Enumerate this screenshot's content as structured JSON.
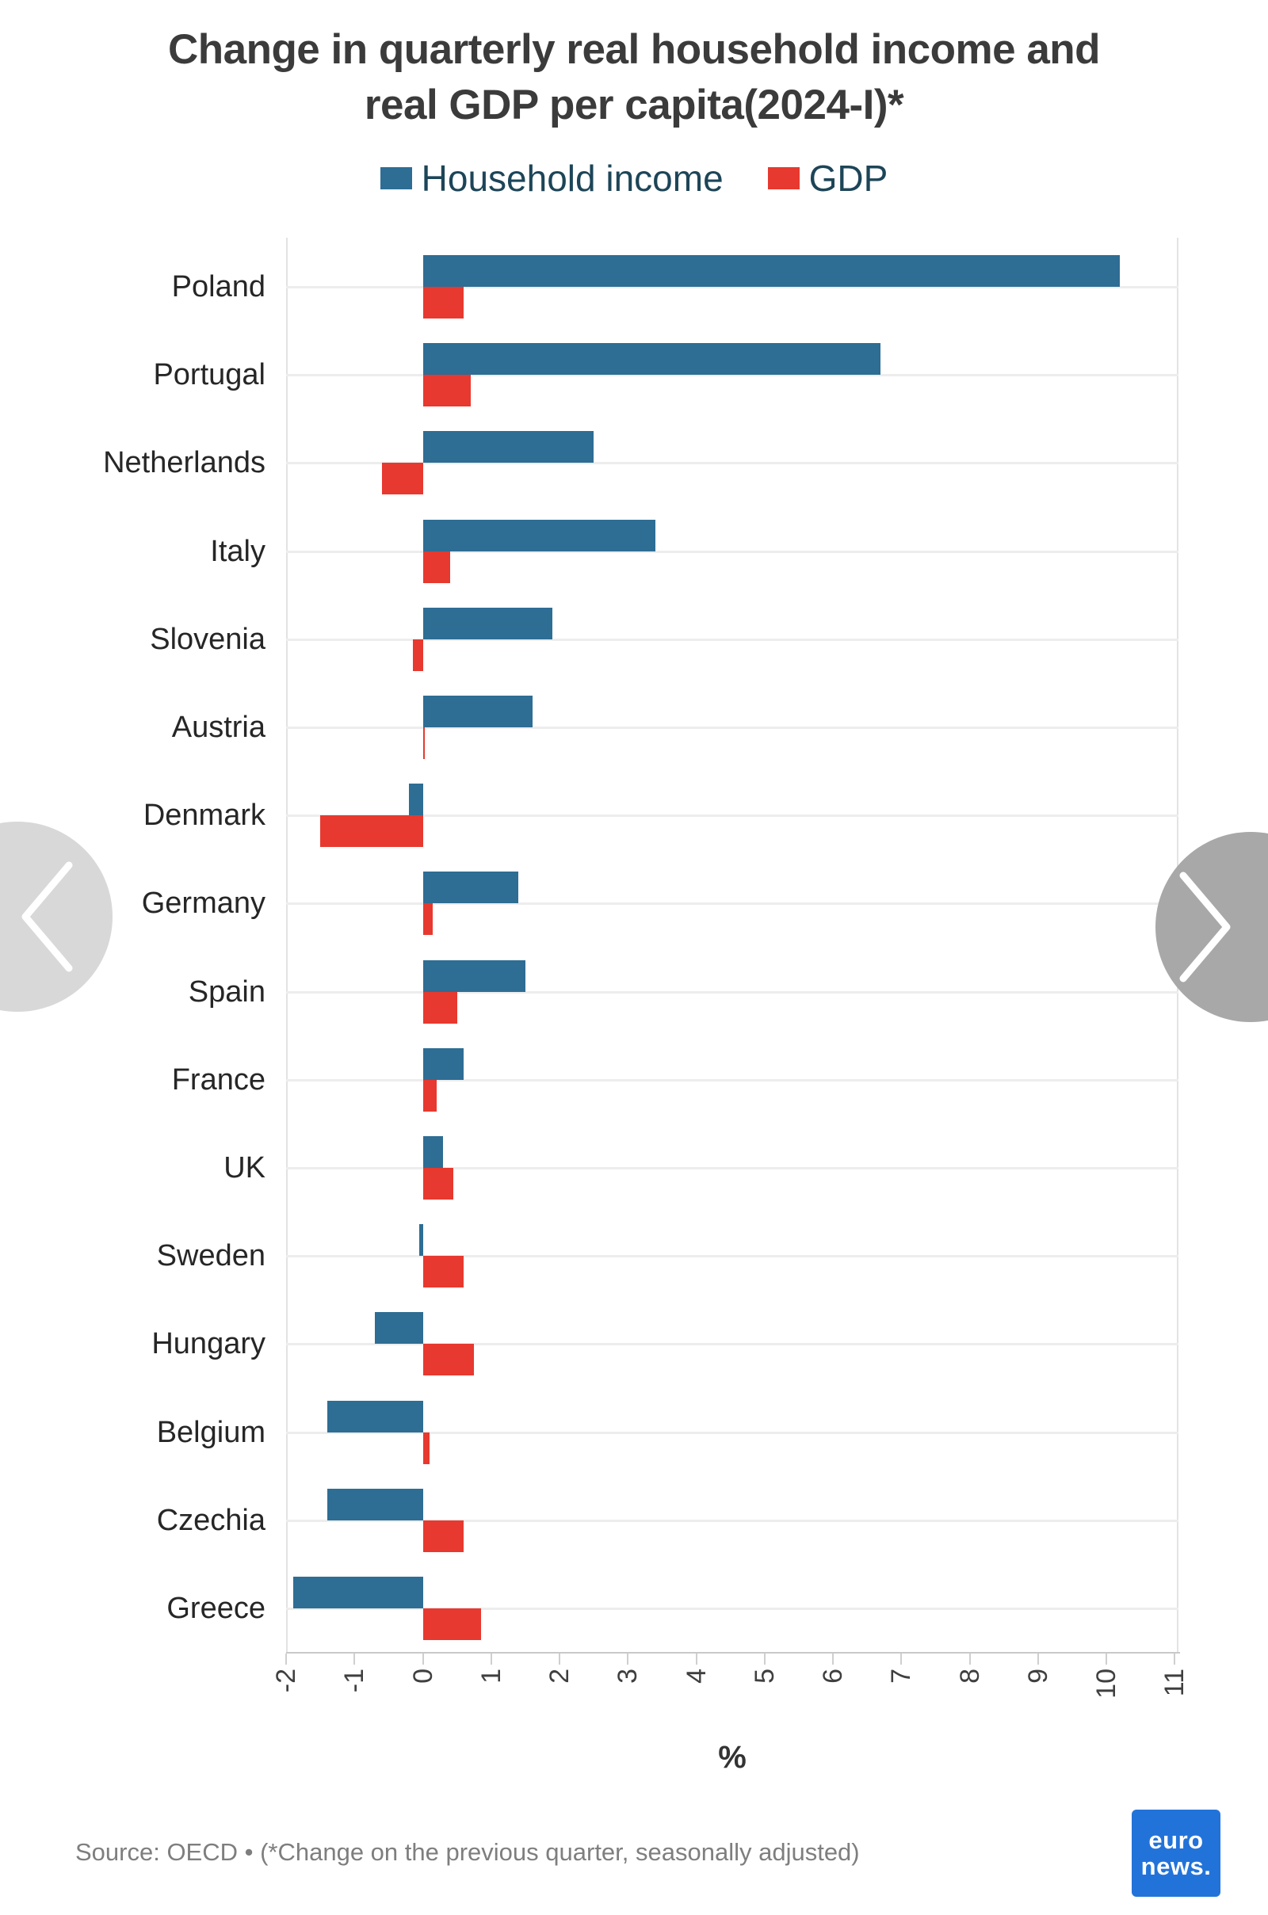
{
  "title": {
    "line1": "Change in quarterly real household income and",
    "line2": "real GDP per capita(2024-I)*"
  },
  "legend": {
    "items": [
      {
        "label": "Household income",
        "color": "#2e6d94"
      },
      {
        "label": "GDP",
        "color": "#e7392f"
      }
    ]
  },
  "chart_data": {
    "type": "bar",
    "orientation": "horizontal",
    "title": "Change in quarterly real household income and real GDP per capita(2024-I)*",
    "categories": [
      "Poland",
      "Portugal",
      "Netherlands",
      "Italy",
      "Slovenia",
      "Austria",
      "Denmark",
      "Germany",
      "Spain",
      "France",
      "UK",
      "Sweden",
      "Hungary",
      "Belgium",
      "Czechia",
      "Greece"
    ],
    "series": [
      {
        "name": "Household income",
        "color": "#2e6d94",
        "values": [
          10.2,
          6.7,
          2.5,
          3.4,
          1.9,
          1.6,
          -0.2,
          1.4,
          1.5,
          0.6,
          0.3,
          -0.05,
          -0.7,
          -1.4,
          -1.4,
          -1.9
        ]
      },
      {
        "name": "GDP",
        "color": "#e7392f",
        "values": [
          0.6,
          0.7,
          -0.6,
          0.4,
          -0.15,
          0.0,
          -1.5,
          0.15,
          0.5,
          0.2,
          0.45,
          0.6,
          0.75,
          0.1,
          0.6,
          0.85
        ]
      }
    ],
    "xlabel": "%",
    "xlim": [
      -2,
      11
    ],
    "xticks": [
      -2,
      -1,
      0,
      1,
      2,
      3,
      4,
      5,
      6,
      7,
      8,
      9,
      10,
      11
    ],
    "grid": true,
    "legend_position": "top"
  },
  "axis": {
    "xlabel": "%"
  },
  "footer": {
    "source": "Source: OECD • (*Change on the previous quarter, seasonally adjusted)"
  },
  "logo": {
    "line1": "euro",
    "line2": "news."
  },
  "carousel": {
    "prev_label": "previous",
    "next_label": "next"
  }
}
